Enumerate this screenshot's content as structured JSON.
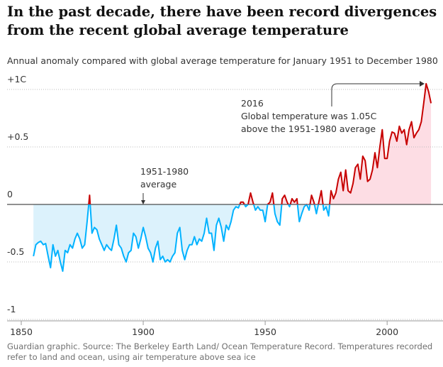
{
  "chart_data": {
    "type": "line",
    "title": "In the past decade, there have been record divergences from the recent global average temperature",
    "subtitle": "Annual anomaly compared with global average temperature for January 1951 to December 1980",
    "source": "Guardian graphic. Source: The Berkeley Earth Land/ Ocean Temperature Record. Temperatures recorded refer to land and ocean, using air temperature above sea ice",
    "annotations": [
      {
        "lines": [
          "2016",
          "Global temperature was 1.05C",
          "above the 1951-1980 average"
        ]
      },
      {
        "lines": [
          "1951-1980",
          "average"
        ]
      }
    ],
    "color_above": "#c70000",
    "color_below": "#00b2ff",
    "fill_above": "#fddde4",
    "fill_below": "#dcf2fc",
    "grid": true,
    "xlim": [
      1850,
      2020
    ],
    "xticks": [
      1850,
      1900,
      1950,
      2000
    ],
    "ylim": [
      -1,
      1
    ],
    "yticks": [
      {
        "value": 1,
        "label": "+1C"
      },
      {
        "value": 0.5,
        "label": "+0.5"
      },
      0,
      {
        "value": -0.5,
        "label": "-0.5"
      },
      -1
    ],
    "x": [
      1855,
      1856,
      1857,
      1858,
      1859,
      1860,
      1861,
      1862,
      1863,
      1864,
      1865,
      1866,
      1867,
      1868,
      1869,
      1870,
      1871,
      1872,
      1873,
      1874,
      1875,
      1876,
      1877,
      1878,
      1879,
      1880,
      1881,
      1882,
      1883,
      1884,
      1885,
      1886,
      1887,
      1888,
      1889,
      1890,
      1891,
      1892,
      1893,
      1894,
      1895,
      1896,
      1897,
      1898,
      1899,
      1900,
      1901,
      1902,
      1903,
      1904,
      1905,
      1906,
      1907,
      1908,
      1909,
      1910,
      1911,
      1912,
      1913,
      1914,
      1915,
      1916,
      1917,
      1918,
      1919,
      1920,
      1921,
      1922,
      1923,
      1924,
      1925,
      1926,
      1927,
      1928,
      1929,
      1930,
      1931,
      1932,
      1933,
      1934,
      1935,
      1936,
      1937,
      1938,
      1939,
      1940,
      1941,
      1942,
      1943,
      1944,
      1945,
      1946,
      1947,
      1948,
      1949,
      1950,
      1951,
      1952,
      1953,
      1954,
      1955,
      1956,
      1957,
      1958,
      1959,
      1960,
      1961,
      1962,
      1963,
      1964,
      1965,
      1966,
      1967,
      1968,
      1969,
      1970,
      1971,
      1972,
      1973,
      1974,
      1975,
      1976,
      1977,
      1978,
      1979,
      1980,
      1981,
      1982,
      1983,
      1984,
      1985,
      1986,
      1987,
      1988,
      1989,
      1990,
      1991,
      1992,
      1993,
      1994,
      1995,
      1996,
      1997,
      1998,
      1999,
      2000,
      2001,
      2002,
      2003,
      2004,
      2005,
      2006,
      2007,
      2008,
      2009,
      2010,
      2011,
      2012,
      2013,
      2014,
      2015,
      2016,
      2017,
      2018
    ],
    "values": [
      -0.45,
      -0.35,
      -0.33,
      -0.32,
      -0.35,
      -0.34,
      -0.45,
      -0.55,
      -0.35,
      -0.45,
      -0.4,
      -0.5,
      -0.58,
      -0.4,
      -0.42,
      -0.35,
      -0.38,
      -0.3,
      -0.25,
      -0.3,
      -0.38,
      -0.35,
      -0.15,
      0.08,
      -0.25,
      -0.2,
      -0.22,
      -0.3,
      -0.35,
      -0.4,
      -0.35,
      -0.38,
      -0.4,
      -0.3,
      -0.18,
      -0.35,
      -0.38,
      -0.45,
      -0.5,
      -0.42,
      -0.4,
      -0.25,
      -0.28,
      -0.38,
      -0.3,
      -0.2,
      -0.28,
      -0.38,
      -0.42,
      -0.5,
      -0.38,
      -0.32,
      -0.48,
      -0.45,
      -0.5,
      -0.48,
      -0.5,
      -0.45,
      -0.42,
      -0.25,
      -0.2,
      -0.4,
      -0.48,
      -0.4,
      -0.35,
      -0.35,
      -0.28,
      -0.35,
      -0.3,
      -0.32,
      -0.25,
      -0.12,
      -0.25,
      -0.25,
      -0.4,
      -0.18,
      -0.12,
      -0.2,
      -0.32,
      -0.18,
      -0.22,
      -0.15,
      -0.05,
      -0.02,
      -0.03,
      0.02,
      0.02,
      -0.02,
      0.0,
      0.1,
      0.02,
      -0.05,
      -0.02,
      -0.05,
      -0.05,
      -0.15,
      0.0,
      0.02,
      0.1,
      -0.08,
      -0.15,
      -0.18,
      0.05,
      0.08,
      0.02,
      -0.02,
      0.05,
      0.02,
      0.05,
      -0.15,
      -0.08,
      -0.02,
      0.0,
      -0.05,
      0.08,
      0.02,
      -0.08,
      0.02,
      0.12,
      -0.05,
      -0.02,
      -0.1,
      0.12,
      0.05,
      0.1,
      0.22,
      0.28,
      0.12,
      0.3,
      0.12,
      0.1,
      0.18,
      0.32,
      0.35,
      0.22,
      0.42,
      0.38,
      0.2,
      0.22,
      0.3,
      0.45,
      0.32,
      0.5,
      0.65,
      0.4,
      0.4,
      0.55,
      0.63,
      0.62,
      0.55,
      0.68,
      0.62,
      0.65,
      0.52,
      0.65,
      0.72,
      0.58,
      0.62,
      0.65,
      0.72,
      0.88,
      1.05,
      0.98,
      0.88
    ]
  }
}
